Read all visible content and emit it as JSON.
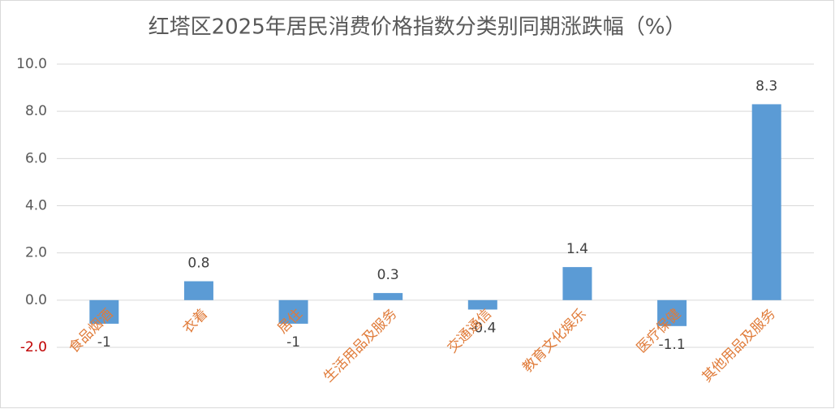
{
  "chart_data": {
    "type": "bar",
    "title": "红塔区2025年居民消费价格指数分类别同期涨跌幅（%）",
    "categories": [
      "食品烟酒",
      "衣着",
      "居住",
      "生活用品及服务",
      "交通通信",
      "教育文化娱乐",
      "医疗保健",
      "其他用品及服务"
    ],
    "values": [
      -1,
      0.8,
      -1,
      0.3,
      -0.4,
      1.4,
      -1.1,
      8.3
    ],
    "color": "#5b9bd5",
    "category_label_color": "#e07b39",
    "negative_tick_label_color": "#c00000",
    "ylim": [
      -2,
      10
    ],
    "yticks": [
      {
        "value": -2,
        "label": "-2.0"
      },
      {
        "value": 0,
        "label": "0.0"
      },
      {
        "value": 2,
        "label": "2.0"
      },
      {
        "value": 4,
        "label": "4.0"
      },
      {
        "value": 6,
        "label": "6.0"
      },
      {
        "value": 8,
        "label": "8.0"
      },
      {
        "value": 10,
        "label": "10.0"
      }
    ],
    "grid": true
  }
}
